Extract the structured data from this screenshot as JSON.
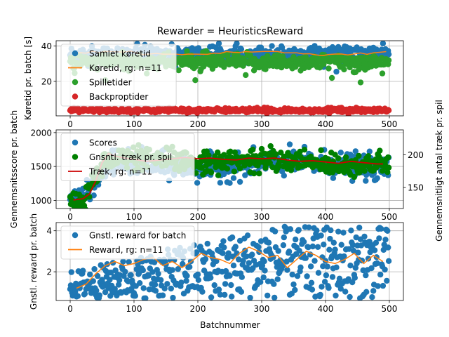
{
  "chart_data": {
    "title": "Rewarder = HeuristicsReward",
    "xlabel": "Batchnummer",
    "type": "scatter",
    "panels": [
      {
        "id": "time",
        "type": "scatter",
        "ylabel": "Køretid pr. batch [s]",
        "xlim": [
          -22,
          522
        ],
        "ylim": [
          0.5,
          43
        ],
        "xticks": [
          0,
          100,
          200,
          300,
          400,
          500
        ],
        "yticks": [
          20,
          40
        ],
        "grid": true,
        "legend_position": "top-left",
        "series": [
          {
            "name": "Samlet køretid",
            "kind": "scatter",
            "color": "#1f77b4",
            "n": 500,
            "typical_range": [
              32,
              41
            ]
          },
          {
            "name": "Køretid, rg: n=11",
            "kind": "line",
            "color": "#ff7f0e",
            "typical_value": 36
          },
          {
            "name": "Spilletider",
            "kind": "scatter",
            "color": "#2ca02c",
            "n": 500,
            "typical_range": [
              26,
              36
            ]
          },
          {
            "name": "Backproptider",
            "kind": "scatter",
            "color": "#d62728",
            "n": 500,
            "typical_range": [
              2,
              6
            ]
          }
        ]
      },
      {
        "id": "score",
        "type": "scatter",
        "ylabel": "Gennemsnitsscore pr. batch",
        "ylabel_right": "Gennemsnitligt antal træk pr. spil",
        "xlim": [
          -22,
          522
        ],
        "ylim": [
          880,
          2040
        ],
        "ylim_right": [
          118,
          238
        ],
        "xticks": [
          0,
          100,
          200,
          300,
          400,
          500
        ],
        "yticks": [
          1000,
          1500,
          2000
        ],
        "yticks_right": [
          150,
          200
        ],
        "grid": true,
        "legend_position": "top-left",
        "series": [
          {
            "name": "Scores",
            "kind": "scatter",
            "color": "#1f77b4",
            "n": 500
          },
          {
            "name": "Gnsntl. træk pr. spil",
            "kind": "scatter",
            "color": "#008000",
            "axis": "right",
            "n": 500
          },
          {
            "name": "Træk, rg: n=11",
            "kind": "line",
            "color": "#cc0000",
            "axis": "right",
            "x": [
              5,
              20,
              30,
              40,
              50,
              60,
              70,
              80,
              100,
              120,
              150,
              180,
              200,
              220,
              240,
              260,
              280,
              300,
              320,
              340,
              360,
              380,
              400,
              420,
              440,
              460,
              480,
              490
            ],
            "y": [
              131,
              133,
              140,
              160,
              188,
              202,
              198,
              196,
              193,
              190,
              193,
              196,
              194,
              195,
              193,
              192,
              195,
              194,
              195,
              192,
              190,
              191,
              189,
              187,
              190,
              188,
              186,
              186
            ]
          }
        ]
      },
      {
        "id": "reward",
        "type": "scatter",
        "ylabel": "Gnstl. reward pr. batch",
        "xlim": [
          -22,
          522
        ],
        "ylim": [
          0.6,
          4.4
        ],
        "xticks": [
          0,
          100,
          200,
          300,
          400,
          500
        ],
        "yticks": [
          2,
          4
        ],
        "grid": true,
        "legend_position": "top-left",
        "series": [
          {
            "name": "Gnstl. reward for batch",
            "kind": "scatter",
            "color": "#1f77b4",
            "n": 500,
            "range": [
              0.7,
              4.2
            ]
          },
          {
            "name": "Reward, rg: n=11",
            "kind": "line",
            "color": "#ff7f0e",
            "x": [
              10,
              25,
              40,
              55,
              70,
              85,
              100,
              115,
              130,
              145,
              160,
              175,
              190,
              205,
              220,
              235,
              250,
              265,
              280,
              295,
              310,
              325,
              340,
              355,
              370,
              385,
              400,
              415,
              430,
              445,
              460,
              475,
              490
            ],
            "y": [
              1.2,
              1.4,
              1.9,
              2.3,
              2.5,
              2.3,
              2.4,
              2.6,
              2.7,
              2.3,
              2.5,
              2.2,
              2.5,
              2.9,
              2.7,
              2.6,
              2.4,
              2.9,
              3.2,
              3.0,
              2.7,
              2.8,
              2.2,
              2.6,
              3.0,
              2.8,
              2.5,
              2.4,
              2.6,
              2.9,
              2.4,
              2.8,
              2.5
            ]
          }
        ]
      }
    ]
  }
}
